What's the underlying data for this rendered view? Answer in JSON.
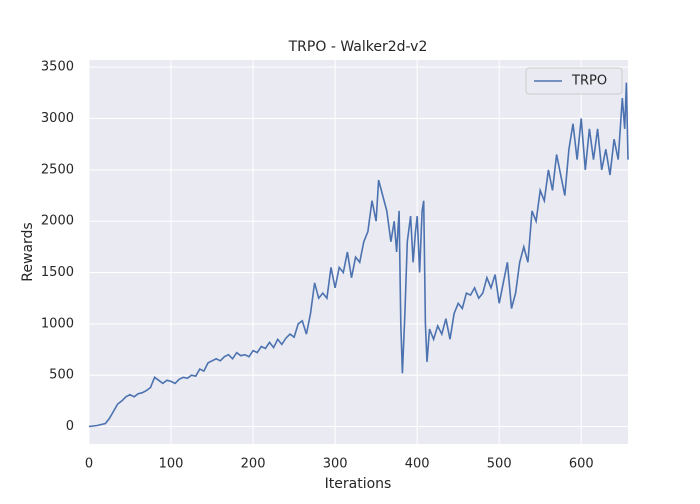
{
  "chart_data": {
    "type": "line",
    "title": "TRPO - Walker2d-v2",
    "xlabel": "Iterations",
    "ylabel": "Rewards",
    "x": [
      0,
      10,
      20,
      25,
      30,
      35,
      40,
      45,
      50,
      55,
      60,
      65,
      70,
      75,
      80,
      85,
      90,
      95,
      100,
      105,
      110,
      115,
      120,
      125,
      130,
      135,
      140,
      145,
      150,
      155,
      160,
      165,
      170,
      175,
      180,
      185,
      190,
      195,
      200,
      205,
      210,
      215,
      220,
      225,
      230,
      235,
      240,
      245,
      250,
      255,
      260,
      265,
      270,
      275,
      280,
      285,
      290,
      295,
      300,
      305,
      310,
      315,
      320,
      325,
      330,
      335,
      340,
      345,
      350,
      353,
      358,
      363,
      368,
      372,
      375,
      378,
      380,
      382,
      385,
      388,
      392,
      395,
      398,
      400,
      403,
      406,
      408,
      410,
      412,
      415,
      420,
      425,
      430,
      435,
      440,
      445,
      450,
      455,
      460,
      465,
      470,
      475,
      480,
      485,
      490,
      495,
      500,
      505,
      510,
      515,
      520,
      525,
      530,
      535,
      540,
      545,
      550,
      555,
      560,
      565,
      570,
      575,
      580,
      585,
      590,
      595,
      600,
      605,
      610,
      615,
      620,
      625,
      630,
      635,
      640,
      645,
      650,
      653,
      655,
      657
    ],
    "series": [
      {
        "name": "TRPO",
        "color": "#4c72b0",
        "values": [
          0,
          10,
          30,
          80,
          150,
          220,
          250,
          290,
          310,
          290,
          320,
          330,
          350,
          380,
          480,
          450,
          420,
          450,
          440,
          420,
          460,
          480,
          470,
          500,
          490,
          560,
          540,
          620,
          640,
          660,
          640,
          680,
          700,
          660,
          720,
          690,
          700,
          680,
          740,
          720,
          780,
          760,
          820,
          770,
          850,
          800,
          860,
          900,
          870,
          1000,
          1030,
          900,
          1100,
          1400,
          1250,
          1300,
          1250,
          1550,
          1350,
          1550,
          1500,
          1700,
          1450,
          1650,
          1600,
          1800,
          1900,
          2200,
          2000,
          2400,
          2250,
          2100,
          1800,
          2000,
          1700,
          2100,
          1000,
          520,
          1100,
          1800,
          2050,
          1600,
          1900,
          2050,
          1500,
          2100,
          2200,
          1000,
          630,
          950,
          850,
          980,
          900,
          1050,
          850,
          1100,
          1200,
          1150,
          1300,
          1280,
          1350,
          1250,
          1300,
          1450,
          1350,
          1480,
          1200,
          1400,
          1600,
          1150,
          1300,
          1600,
          1750,
          1600,
          2100,
          2000,
          2300,
          2200,
          2500,
          2300,
          2650,
          2450,
          2250,
          2700,
          2950,
          2600,
          3000,
          2500,
          2900,
          2600,
          2900,
          2500,
          2700,
          2450,
          2800,
          2600,
          3200,
          2900,
          3350,
          2600
        ]
      }
    ],
    "xlim": [
      0,
      657
    ],
    "ylim": [
      -170,
      3570
    ],
    "xticks": [
      0,
      100,
      200,
      300,
      400,
      500,
      600
    ],
    "yticks": [
      0,
      500,
      1000,
      1500,
      2000,
      2500,
      3000,
      3500
    ],
    "grid": true,
    "legend": "upper right"
  }
}
